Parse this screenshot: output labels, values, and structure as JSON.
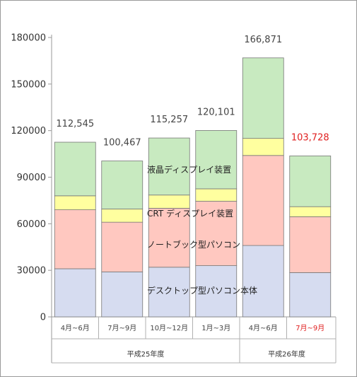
{
  "chart_data": {
    "type": "bar",
    "stacked": true,
    "categories": [
      "4月~6月",
      "7月~9月",
      "10月~12月",
      "1月~3月",
      "4月~6月",
      "7月~9月"
    ],
    "category_groups": [
      {
        "label": "平成25年度",
        "count": 4
      },
      {
        "label": "平成26年度",
        "count": 2
      }
    ],
    "series": [
      {
        "name": "デスクトップ型パソコン本体",
        "color": "#d6dcf0",
        "values": [
          31000,
          29000,
          32000,
          33000,
          46000,
          28500
        ]
      },
      {
        "name": "ノートブック型パソコン",
        "color": "#ffc8c0",
        "values": [
          38000,
          32000,
          38000,
          41500,
          58000,
          36000
        ]
      },
      {
        "name": "CRT ディスプレイ装置",
        "color": "#ffff9f",
        "values": [
          9000,
          8500,
          8500,
          8000,
          11000,
          6500
        ]
      },
      {
        "name": "液晶ディスプレイ装置",
        "color": "#c8eac0",
        "values": [
          34545,
          30967,
          36757,
          37601,
          51871,
          32728
        ]
      }
    ],
    "totals": [
      "112,545",
      "100,467",
      "115,257",
      "120,101",
      "166,871",
      "103,728"
    ],
    "highlight_index": 5,
    "highlight_color": "#e02020",
    "yticks": [
      "0",
      "30000",
      "60000",
      "90000",
      "120000",
      "150000",
      "180000"
    ],
    "ylim": [
      0,
      180000
    ],
    "grid": false,
    "bar_edge_color": "#777777"
  }
}
